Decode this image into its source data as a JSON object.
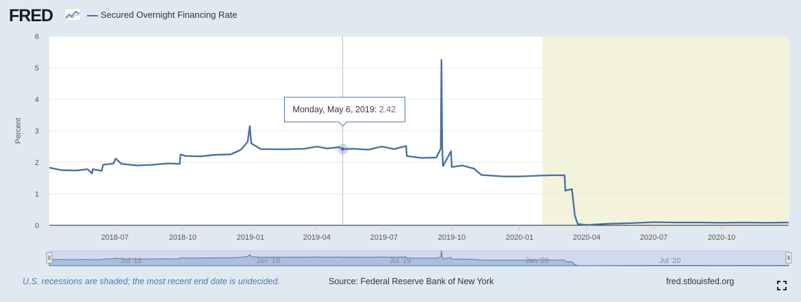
{
  "header": {
    "logo_text": "FRED",
    "legend_label": "Secured Overnight Financing Rate"
  },
  "footer": {
    "recession_note": "U.S. recessions are shaded; the most recent end date is undecided.",
    "source": "Source: Federal Reserve Bank of New York",
    "url": "fred.stlouisfed.org"
  },
  "tooltip": {
    "date_label": "Monday, May 6, 2019:",
    "value_label": "2.42",
    "x": "2019-05-06",
    "y": 2.42
  },
  "colors": {
    "series": "#4572a7",
    "recession": "#f3f3dc",
    "background": "#e1e9f0"
  },
  "chart_data": {
    "type": "line",
    "title": "",
    "xlabel": "",
    "ylabel": "Percent",
    "ylim": [
      0,
      6
    ],
    "yticks": [
      0,
      1,
      2,
      3,
      4,
      5,
      6
    ],
    "xlim": [
      "2018-04-03",
      "2020-12-31"
    ],
    "xticks": [
      "2018-07",
      "2018-10",
      "2019-01",
      "2019-04",
      "2019-07",
      "2019-10",
      "2020-01",
      "2020-04",
      "2020-07",
      "2020-10"
    ],
    "grid": true,
    "recession": {
      "start": "2020-02-01",
      "end": "2020-12-31"
    },
    "series": [
      {
        "name": "Secured Overnight Financing Rate",
        "points": [
          [
            "2018-04-03",
            1.83
          ],
          [
            "2018-04-20",
            1.75
          ],
          [
            "2018-05-10",
            1.74
          ],
          [
            "2018-05-25",
            1.78
          ],
          [
            "2018-05-31",
            1.65
          ],
          [
            "2018-06-01",
            1.78
          ],
          [
            "2018-06-13",
            1.73
          ],
          [
            "2018-06-15",
            1.92
          ],
          [
            "2018-06-29",
            1.96
          ],
          [
            "2018-07-02",
            2.12
          ],
          [
            "2018-07-10",
            1.95
          ],
          [
            "2018-07-31",
            1.9
          ],
          [
            "2018-08-20",
            1.92
          ],
          [
            "2018-09-10",
            1.96
          ],
          [
            "2018-09-27",
            1.95
          ],
          [
            "2018-09-28",
            2.25
          ],
          [
            "2018-10-05",
            2.2
          ],
          [
            "2018-10-25",
            2.19
          ],
          [
            "2018-11-15",
            2.24
          ],
          [
            "2018-12-05",
            2.25
          ],
          [
            "2018-12-19",
            2.4
          ],
          [
            "2018-12-28",
            2.65
          ],
          [
            "2018-12-31",
            3.15
          ],
          [
            "2019-01-02",
            2.6
          ],
          [
            "2019-01-15",
            2.42
          ],
          [
            "2019-02-15",
            2.41
          ],
          [
            "2019-03-15",
            2.43
          ],
          [
            "2019-04-01",
            2.5
          ],
          [
            "2019-04-15",
            2.44
          ],
          [
            "2019-05-01",
            2.48
          ],
          [
            "2019-05-06",
            2.42
          ],
          [
            "2019-05-20",
            2.43
          ],
          [
            "2019-06-10",
            2.4
          ],
          [
            "2019-06-28",
            2.5
          ],
          [
            "2019-07-15",
            2.42
          ],
          [
            "2019-07-31",
            2.52
          ],
          [
            "2019-08-01",
            2.2
          ],
          [
            "2019-08-20",
            2.14
          ],
          [
            "2019-09-10",
            2.15
          ],
          [
            "2019-09-16",
            2.43
          ],
          [
            "2019-09-17",
            5.25
          ],
          [
            "2019-09-18",
            2.55
          ],
          [
            "2019-09-19",
            1.88
          ],
          [
            "2019-09-30",
            2.35
          ],
          [
            "2019-10-01",
            1.85
          ],
          [
            "2019-10-15",
            1.9
          ],
          [
            "2019-10-31",
            1.8
          ],
          [
            "2019-11-10",
            1.6
          ],
          [
            "2019-12-10",
            1.55
          ],
          [
            "2019-12-31",
            1.55
          ],
          [
            "2020-01-31",
            1.58
          ],
          [
            "2020-02-15",
            1.59
          ],
          [
            "2020-03-02",
            1.59
          ],
          [
            "2020-03-03",
            1.1
          ],
          [
            "2020-03-12",
            1.15
          ],
          [
            "2020-03-16",
            0.3
          ],
          [
            "2020-03-20",
            0.04
          ],
          [
            "2020-04-01",
            0.01
          ],
          [
            "2020-05-01",
            0.05
          ],
          [
            "2020-06-01",
            0.07
          ],
          [
            "2020-07-01",
            0.1
          ],
          [
            "2020-08-01",
            0.09
          ],
          [
            "2020-09-01",
            0.09
          ],
          [
            "2020-10-01",
            0.08
          ],
          [
            "2020-11-01",
            0.09
          ],
          [
            "2020-12-01",
            0.08
          ],
          [
            "2020-12-31",
            0.09
          ]
        ]
      }
    ],
    "navigator_labels": [
      "Jul '18",
      "Jan '19",
      "Jul '19",
      "Jan '20",
      "Jul '20"
    ]
  }
}
